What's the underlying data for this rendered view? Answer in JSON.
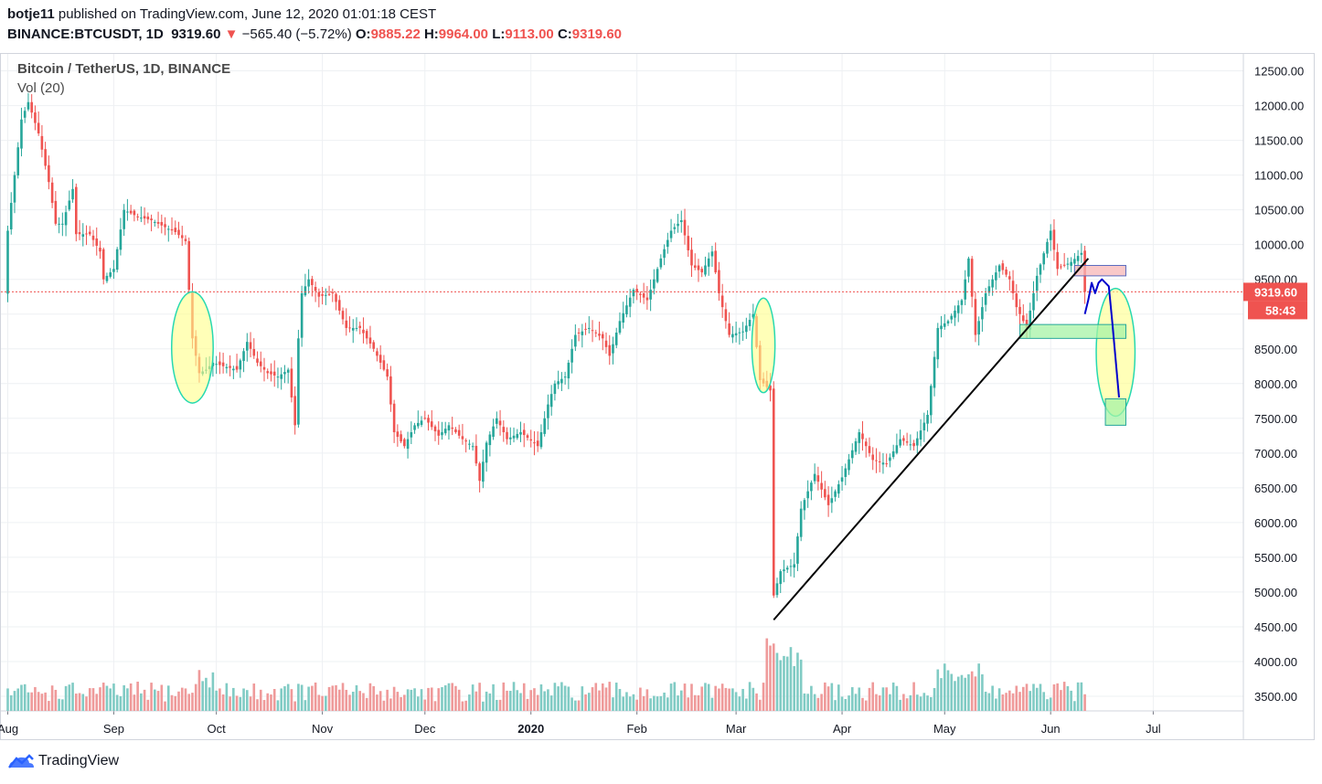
{
  "header": {
    "author": "botje11",
    "published_text": " published on TradingView.com, June 12, 2020 01:01:18 CEST",
    "symbol": "BINANCE:BTCUSDT, 1D",
    "last": "9319.60",
    "change_arrow": "▼",
    "change": "−565.40 (−5.72%)",
    "o_label": "O:",
    "o_val": "9885.22",
    "h_label": "H:",
    "h_val": "9964.00",
    "l_label": "L:",
    "l_val": "9113.00",
    "c_label": "C:",
    "c_val": "9319.60"
  },
  "legend": {
    "title": "Bitcoin / TetherUS, 1D, BINANCE",
    "indicator": "Vol (20)"
  },
  "price_badge": "9319.60",
  "countdown_badge": "58:43",
  "footer": {
    "brand": "TradingView"
  },
  "colors": {
    "up": "#26a69a",
    "down": "#ef5350",
    "vol_up": "#80cbc4",
    "vol_down": "#ef9a9a",
    "grid": "#eef0f3",
    "trendline": "#000000",
    "projection": "#0000cc",
    "ellipse_fill": "#ffff88",
    "ellipse_stroke": "#26d9b0",
    "zone_green": "#a6f3a6",
    "zone_red": "#f7b6b6"
  },
  "chart_data": {
    "type": "candlestick",
    "title": "Bitcoin / TetherUS, 1D, BINANCE",
    "x_ticks": [
      "Aug",
      "Sep",
      "Oct",
      "Nov",
      "Dec",
      "2020",
      "Feb",
      "Mar",
      "Apr",
      "May",
      "Jun",
      "Jul"
    ],
    "y_ticks": [
      "12500.00",
      "12000.00",
      "11500.00",
      "11000.00",
      "10500.00",
      "10000.00",
      "9500.00",
      "9000.00",
      "8500.00",
      "8000.00",
      "7500.00",
      "7000.00",
      "6500.00",
      "6000.00",
      "5500.00",
      "5000.00",
      "4500.00",
      "4000.00",
      "3500.00"
    ],
    "ylim": [
      3300,
      12800
    ],
    "grid": true,
    "last_price": 9319.6,
    "price_path": [
      [
        "2019-08-01",
        10200
      ],
      [
        "2019-08-05",
        11800
      ],
      [
        "2019-08-07",
        12050
      ],
      [
        "2019-08-10",
        11600
      ],
      [
        "2019-08-13",
        10900
      ],
      [
        "2019-08-15",
        10300
      ],
      [
        "2019-08-17",
        10300
      ],
      [
        "2019-08-20",
        10800
      ],
      [
        "2019-08-21",
        10150
      ],
      [
        "2019-08-25",
        10150
      ],
      [
        "2019-08-28",
        9900
      ],
      [
        "2019-08-29",
        9500
      ],
      [
        "2019-09-01",
        9650
      ],
      [
        "2019-09-04",
        10500
      ],
      [
        "2019-09-08",
        10400
      ],
      [
        "2019-09-12",
        10350
      ],
      [
        "2019-09-16",
        10250
      ],
      [
        "2019-09-19",
        10180
      ],
      [
        "2019-09-22",
        10050
      ],
      [
        "2019-09-24",
        8650
      ],
      [
        "2019-09-26",
        8150
      ],
      [
        "2019-09-28",
        8200
      ],
      [
        "2019-09-30",
        8300
      ],
      [
        "2019-10-03",
        8250
      ],
      [
        "2019-10-07",
        8200
      ],
      [
        "2019-10-10",
        8600
      ],
      [
        "2019-10-13",
        8300
      ],
      [
        "2019-10-16",
        8150
      ],
      [
        "2019-10-19",
        8100
      ],
      [
        "2019-10-22",
        8200
      ],
      [
        "2019-10-24",
        7400
      ],
      [
        "2019-10-25",
        8650
      ],
      [
        "2019-10-26",
        9300
      ],
      [
        "2019-10-28",
        9500
      ],
      [
        "2019-10-31",
        9250
      ],
      [
        "2019-11-04",
        9300
      ],
      [
        "2019-11-08",
        8800
      ],
      [
        "2019-11-12",
        8800
      ],
      [
        "2019-11-16",
        8500
      ],
      [
        "2019-11-20",
        8100
      ],
      [
        "2019-11-22",
        7300
      ],
      [
        "2019-11-25",
        7100
      ],
      [
        "2019-11-28",
        7400
      ],
      [
        "2019-12-01",
        7500
      ],
      [
        "2019-12-05",
        7250
      ],
      [
        "2019-12-08",
        7400
      ],
      [
        "2019-12-12",
        7200
      ],
      [
        "2019-12-15",
        7100
      ],
      [
        "2019-12-17",
        6600
      ],
      [
        "2019-12-19",
        7150
      ],
      [
        "2019-12-22",
        7500
      ],
      [
        "2019-12-25",
        7200
      ],
      [
        "2019-12-29",
        7300
      ],
      [
        "2020-01-03",
        7100
      ],
      [
        "2020-01-06",
        7700
      ],
      [
        "2020-01-08",
        8000
      ],
      [
        "2020-01-11",
        8100
      ],
      [
        "2020-01-14",
        8700
      ],
      [
        "2020-01-18",
        8800
      ],
      [
        "2020-01-22",
        8650
      ],
      [
        "2020-01-24",
        8400
      ],
      [
        "2020-01-27",
        8900
      ],
      [
        "2020-01-31",
        9350
      ],
      [
        "2020-02-04",
        9200
      ],
      [
        "2020-02-08",
        9800
      ],
      [
        "2020-02-11",
        10200
      ],
      [
        "2020-02-14",
        10350
      ],
      [
        "2020-02-17",
        9700
      ],
      [
        "2020-02-20",
        9600
      ],
      [
        "2020-02-23",
        9900
      ],
      [
        "2020-02-25",
        9300
      ],
      [
        "2020-02-28",
        8700
      ],
      [
        "2020-03-03",
        8750
      ],
      [
        "2020-03-06",
        9000
      ],
      [
        "2020-03-08",
        8050
      ],
      [
        "2020-03-11",
        7900
      ],
      [
        "2020-03-12",
        4950
      ],
      [
        "2020-03-14",
        5300
      ],
      [
        "2020-03-18",
        5400
      ],
      [
        "2020-03-20",
        6200
      ],
      [
        "2020-03-24",
        6700
      ],
      [
        "2020-03-28",
        6250
      ],
      [
        "2020-04-01",
        6650
      ],
      [
        "2020-04-06",
        7300
      ],
      [
        "2020-04-10",
        6900
      ],
      [
        "2020-04-14",
        6850
      ],
      [
        "2020-04-18",
        7200
      ],
      [
        "2020-04-22",
        7100
      ],
      [
        "2020-04-26",
        7550
      ],
      [
        "2020-04-29",
        8800
      ],
      [
        "2020-05-02",
        8900
      ],
      [
        "2020-05-06",
        9200
      ],
      [
        "2020-05-08",
        9800
      ],
      [
        "2020-05-10",
        8700
      ],
      [
        "2020-05-13",
        9300
      ],
      [
        "2020-05-17",
        9700
      ],
      [
        "2020-05-20",
        9500
      ],
      [
        "2020-05-22",
        9100
      ],
      [
        "2020-05-25",
        8800
      ],
      [
        "2020-05-28",
        9550
      ],
      [
        "2020-06-01",
        10200
      ],
      [
        "2020-06-03",
        9650
      ],
      [
        "2020-06-07",
        9750
      ],
      [
        "2020-06-10",
        9880
      ],
      [
        "2020-06-11",
        9319.6
      ]
    ],
    "annotations": {
      "trendline": [
        [
          "2020-03-12",
          4600
        ],
        [
          "2020-06-12",
          9800
        ]
      ],
      "projection": [
        [
          "2020-06-11",
          9000
        ],
        [
          "2020-06-12",
          9200
        ],
        [
          "2020-06-13",
          9450
        ],
        [
          "2020-06-14",
          9300
        ],
        [
          "2020-06-15",
          9450
        ],
        [
          "2020-06-16",
          9500
        ],
        [
          "2020-06-18",
          9400
        ],
        [
          "2020-06-19",
          8900
        ],
        [
          "2020-06-21",
          7800
        ]
      ],
      "zone_green_support": [
        [
          "2020-05-23",
          8650
        ],
        [
          "2020-06-23",
          8850
        ]
      ],
      "zone_red_resistance": [
        [
          "2020-06-08",
          9550
        ],
        [
          "2020-06-23",
          9700
        ]
      ],
      "zone_green_target": [
        [
          "2020-06-17",
          7400
        ],
        [
          "2020-06-23",
          7780
        ]
      ],
      "ellipses": [
        {
          "center": [
            "2019-09-24",
            8520
          ],
          "rx_days": 4.5,
          "ry": 800
        },
        {
          "center": [
            "2020-03-09",
            8550
          ],
          "rx_days": 2.5,
          "ry": 680
        },
        {
          "center": [
            "2020-06-20",
            8450
          ],
          "rx_days": 4.2,
          "ry": 920
        }
      ]
    }
  }
}
